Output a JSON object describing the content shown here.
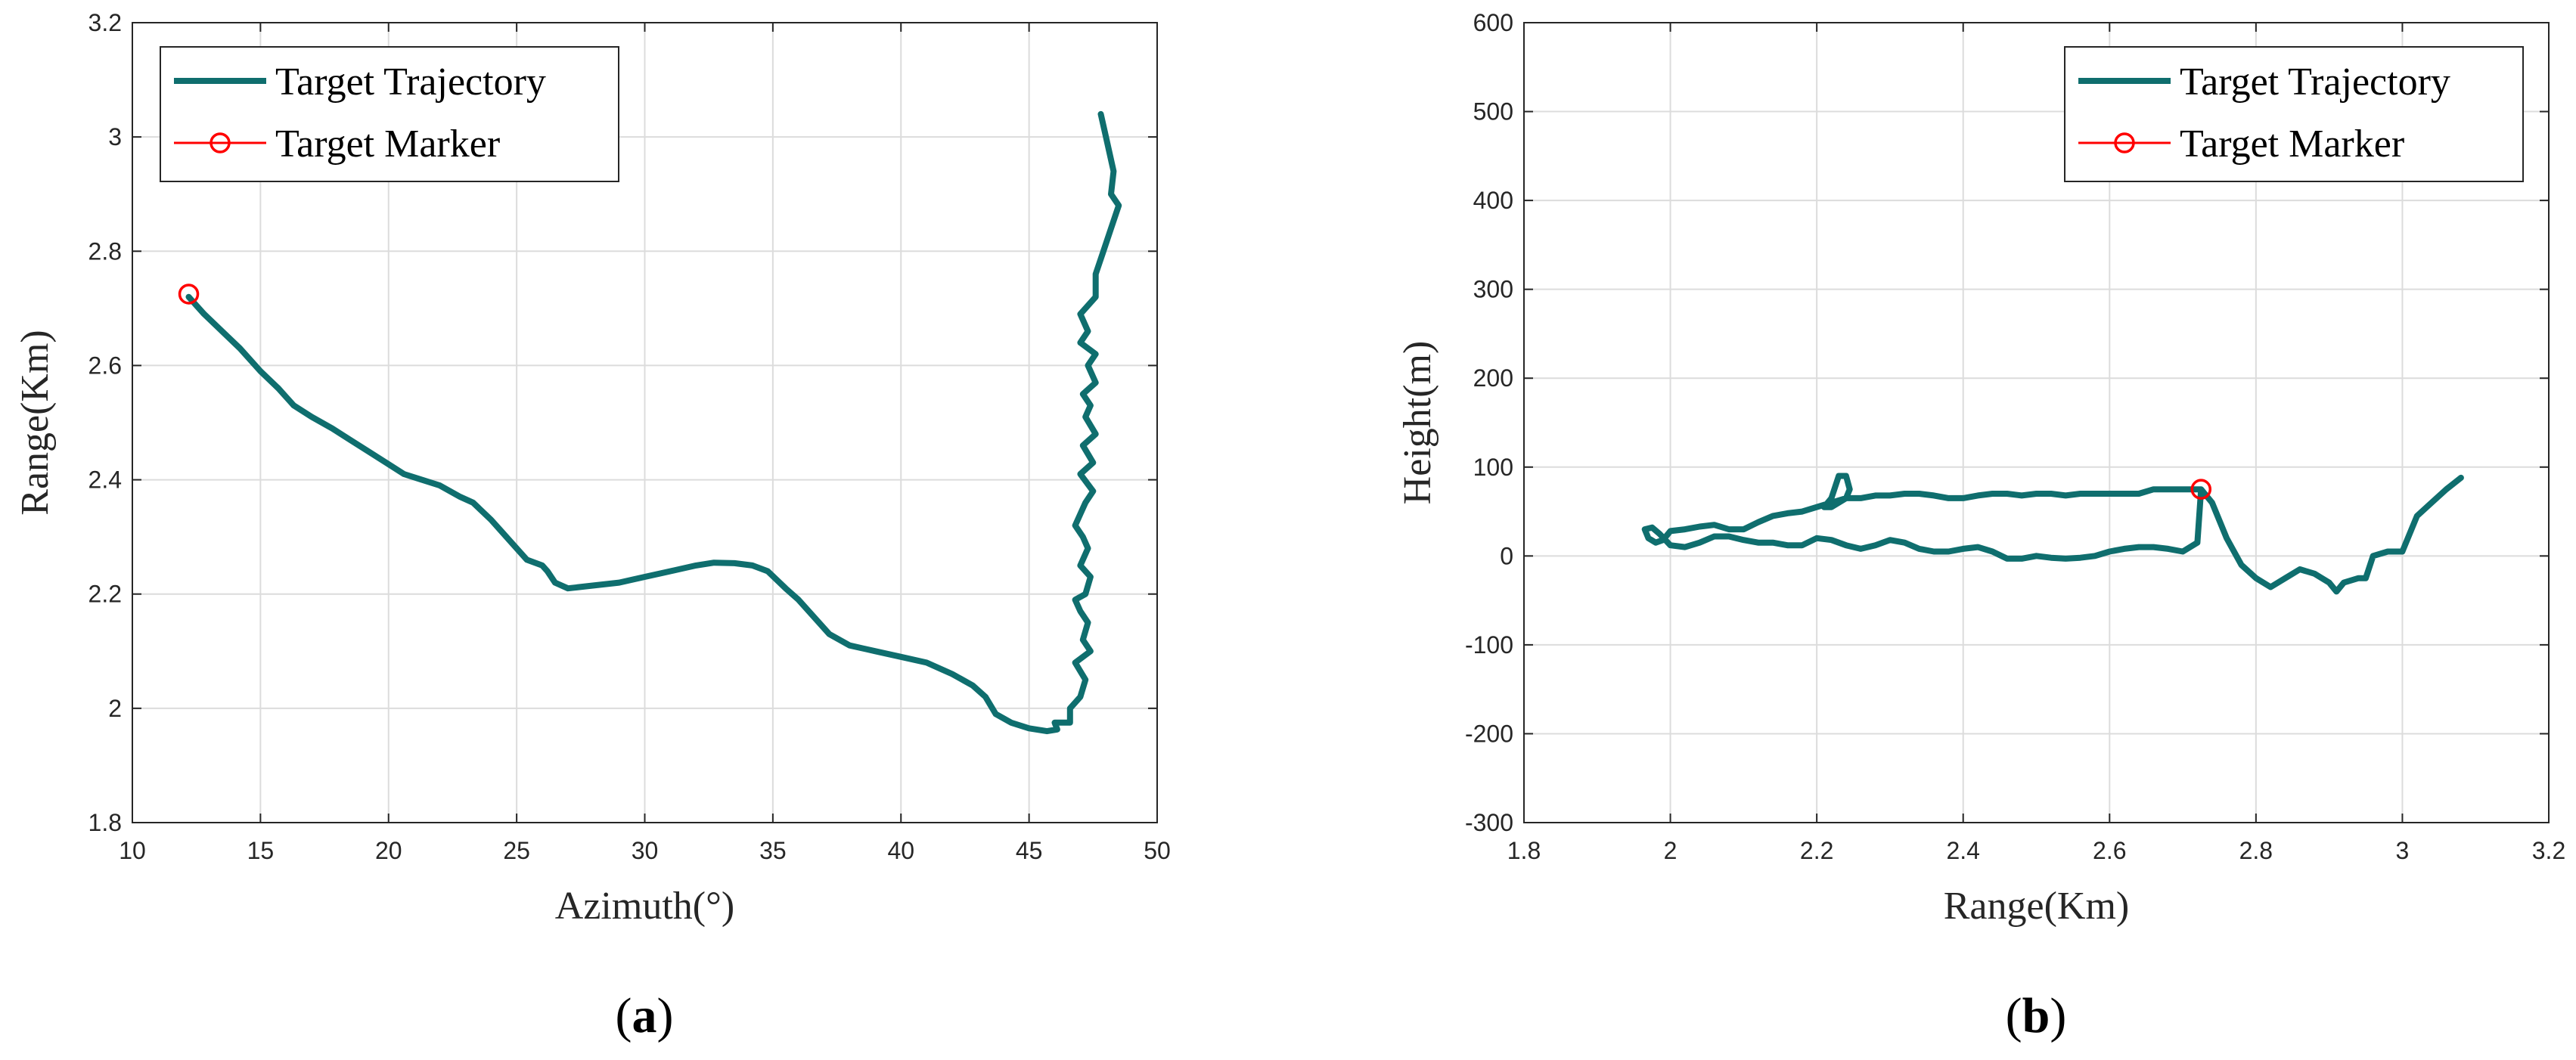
{
  "colors": {
    "trajectory": "#0f6e6e",
    "marker": "#ff0000",
    "grid": "#dcdcdc",
    "axis": "#262626"
  },
  "chart_data": [
    {
      "type": "line",
      "panel_label": {
        "open": "(",
        "letter": "a",
        "close": ")"
      },
      "xlabel": "Azimuth(°)",
      "ylabel": "Range(Km)",
      "xlim": [
        10,
        50
      ],
      "ylim": [
        1.8,
        3.2
      ],
      "xticks": [
        10,
        15,
        20,
        25,
        30,
        35,
        40,
        45,
        50
      ],
      "yticks": [
        1.8,
        2,
        2.2,
        2.4,
        2.6,
        2.8,
        3,
        3.2
      ],
      "xtick_labels": [
        "10",
        "15",
        "20",
        "25",
        "30",
        "35",
        "40",
        "45",
        "50"
      ],
      "ytick_labels": [
        "1.8",
        "2",
        "2.2",
        "2.4",
        "2.6",
        "2.8",
        "3",
        "3.2"
      ],
      "grid": true,
      "legend": {
        "position": "top-left",
        "entries": [
          "Target Trajectory",
          "Target Marker"
        ]
      },
      "series": [
        {
          "name": "Target Trajectory",
          "x": [
            12.2,
            12.8,
            13.5,
            14.2,
            15.0,
            15.7,
            16.3,
            17.0,
            17.8,
            18.5,
            19.2,
            19.9,
            20.6,
            21.3,
            22.0,
            22.8,
            23.3,
            24.0,
            24.4,
            24.8,
            25.4,
            26.0,
            26.2,
            26.5,
            27.0,
            28.0,
            29.0,
            30.0,
            31.0,
            32.0,
            32.7,
            33.5,
            34.2,
            34.8,
            35.5,
            36.0,
            36.6,
            37.2,
            38.0,
            39.0,
            40.0,
            41.0,
            42.0,
            42.8,
            43.3,
            43.7,
            44.3,
            45.0,
            45.7,
            46.1,
            46.0,
            46.6,
            46.6,
            47.0,
            47.2,
            46.8,
            47.4,
            47.1,
            47.3,
            47.0,
            46.8,
            47.2,
            47.4,
            47.0,
            47.3,
            47.1,
            46.8,
            47.0,
            47.2,
            47.5,
            47.0,
            47.5,
            47.1,
            47.6,
            47.2,
            47.4,
            47.1,
            47.6,
            47.3,
            47.6,
            47.0,
            47.3,
            47.0,
            47.6,
            47.6,
            47.9,
            48.2,
            48.5,
            48.2,
            48.3,
            48.0,
            47.8
          ],
          "y": [
            2.72,
            2.69,
            2.66,
            2.63,
            2.59,
            2.56,
            2.53,
            2.51,
            2.49,
            2.47,
            2.45,
            2.43,
            2.41,
            2.4,
            2.39,
            2.37,
            2.36,
            2.33,
            2.31,
            2.29,
            2.26,
            2.25,
            2.24,
            2.22,
            2.21,
            2.215,
            2.22,
            2.23,
            2.24,
            2.25,
            2.255,
            2.254,
            2.25,
            2.24,
            2.21,
            2.19,
            2.16,
            2.13,
            2.11,
            2.1,
            2.09,
            2.08,
            2.06,
            2.04,
            2.02,
            1.99,
            1.975,
            1.965,
            1.96,
            1.963,
            1.975,
            1.975,
            2.0,
            2.02,
            2.05,
            2.08,
            2.1,
            2.12,
            2.15,
            2.17,
            2.19,
            2.2,
            2.23,
            2.25,
            2.28,
            2.3,
            2.32,
            2.34,
            2.36,
            2.38,
            2.41,
            2.43,
            2.46,
            2.48,
            2.51,
            2.53,
            2.55,
            2.57,
            2.6,
            2.62,
            2.64,
            2.66,
            2.69,
            2.72,
            2.76,
            2.8,
            2.84,
            2.88,
            2.9,
            2.94,
            3.0,
            3.04
          ]
        },
        {
          "name": "Target Marker",
          "x": [
            12.2
          ],
          "y": [
            2.725
          ]
        }
      ]
    },
    {
      "type": "line",
      "panel_label": {
        "open": "(",
        "letter": "b",
        "close": ")"
      },
      "xlabel": "Range(Km)",
      "ylabel": "Height(m)",
      "xlim": [
        1.8,
        3.2
      ],
      "ylim": [
        -300,
        600
      ],
      "xticks": [
        1.8,
        2,
        2.2,
        2.4,
        2.6,
        2.8,
        3,
        3.2
      ],
      "yticks": [
        -300,
        -200,
        -100,
        0,
        100,
        200,
        300,
        400,
        500,
        600
      ],
      "xtick_labels": [
        "1.8",
        "2",
        "2.2",
        "2.4",
        "2.6",
        "2.8",
        "3",
        "3.2"
      ],
      "ytick_labels": [
        "-300",
        "-200",
        "-100",
        "0",
        "100",
        "200",
        "300",
        "400",
        "500",
        "600"
      ],
      "grid": true,
      "legend": {
        "position": "top-right",
        "entries": [
          "Target Trajectory",
          "Target Marker"
        ]
      },
      "series": [
        {
          "name": "Target Trajectory",
          "x": [
            2.725,
            2.72,
            2.7,
            2.68,
            2.66,
            2.64,
            2.62,
            2.6,
            2.58,
            2.56,
            2.54,
            2.52,
            2.5,
            2.48,
            2.46,
            2.44,
            2.42,
            2.4,
            2.38,
            2.36,
            2.34,
            2.32,
            2.3,
            2.28,
            2.26,
            2.24,
            2.22,
            2.2,
            2.18,
            2.16,
            2.14,
            2.12,
            2.1,
            2.08,
            2.06,
            2.04,
            2.02,
            2.0,
            1.985,
            1.975,
            1.965,
            1.97,
            1.98,
            1.99,
            2.0,
            2.02,
            2.04,
            2.06,
            2.08,
            2.1,
            2.12,
            2.14,
            2.16,
            2.18,
            2.2,
            2.22,
            2.24,
            2.245,
            2.24,
            2.23,
            2.22,
            2.215,
            2.21,
            2.22,
            2.24,
            2.26,
            2.28,
            2.3,
            2.32,
            2.34,
            2.36,
            2.38,
            2.4,
            2.42,
            2.44,
            2.46,
            2.48,
            2.5,
            2.52,
            2.54,
            2.56,
            2.58,
            2.6,
            2.62,
            2.64,
            2.66,
            2.68,
            2.7,
            2.72,
            2.725,
            2.74,
            2.76,
            2.78,
            2.8,
            2.82,
            2.84,
            2.86,
            2.88,
            2.9,
            2.91,
            2.92,
            2.94,
            2.95,
            2.96,
            2.98,
            3.0,
            3.02,
            3.04,
            3.06,
            3.08
          ],
          "y": [
            75,
            15,
            5,
            8,
            10,
            10,
            8,
            5,
            0,
            -2,
            -3,
            -2,
            0,
            -3,
            -3,
            5,
            10,
            8,
            5,
            5,
            8,
            15,
            18,
            12,
            8,
            12,
            18,
            20,
            12,
            12,
            15,
            15,
            18,
            22,
            22,
            15,
            10,
            12,
            25,
            32,
            30,
            20,
            15,
            18,
            28,
            30,
            33,
            35,
            30,
            30,
            38,
            45,
            48,
            50,
            55,
            60,
            65,
            75,
            90,
            90,
            65,
            60,
            55,
            55,
            65,
            65,
            68,
            68,
            70,
            70,
            68,
            65,
            65,
            68,
            70,
            70,
            68,
            70,
            70,
            68,
            70,
            70,
            70,
            70,
            70,
            75,
            75,
            75,
            75,
            75,
            60,
            20,
            -10,
            -25,
            -35,
            -25,
            -15,
            -20,
            -30,
            -40,
            -30,
            -25,
            -25,
            0,
            5,
            5,
            45,
            60,
            75,
            88
          ]
        },
        {
          "name": "Target Marker",
          "x": [
            2.725
          ],
          "y": [
            75
          ]
        }
      ]
    }
  ]
}
